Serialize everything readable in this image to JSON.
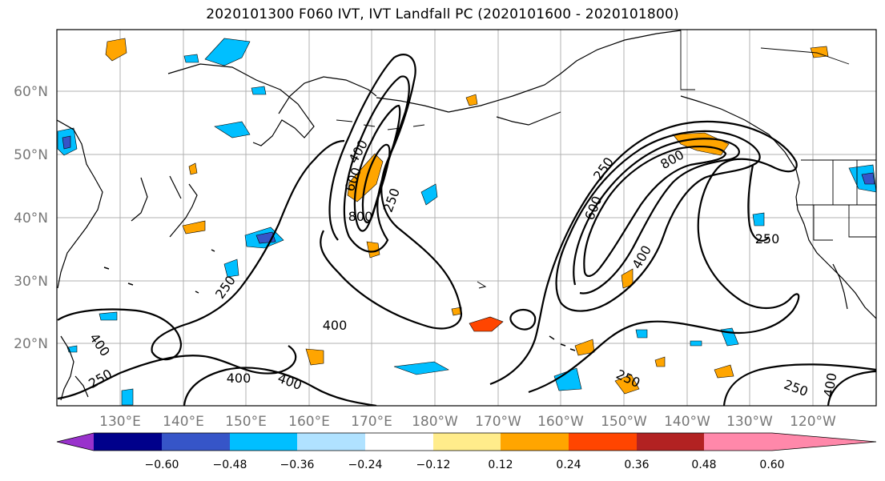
{
  "title": "2020101300 F060 IVT, IVT Landfall PC (2020101600 - 2020101800)",
  "lat_labels": [
    "60°N",
    "50°N",
    "40°N",
    "30°N",
    "20°N"
  ],
  "lon_labels": [
    "130°E",
    "140°E",
    "150°E",
    "160°E",
    "170°E",
    "180°W",
    "170°W",
    "160°W",
    "150°W",
    "140°W",
    "130°W",
    "120°W"
  ],
  "colorbar": {
    "colors": [
      "#9932cc",
      "#00008b",
      "#3655c8",
      "#00bfff",
      "#b0e2ff",
      "#ffffff",
      "#ffec8b",
      "#ffa500",
      "#ff4500",
      "#b22222",
      "#ff88aa"
    ],
    "tick_labels": [
      "−0.60",
      "−0.48",
      "−0.36",
      "−0.24",
      "−0.12",
      "0.12",
      "0.24",
      "0.36",
      "0.48",
      "0.60"
    ]
  },
  "contour_labels": [
    "400",
    "600",
    "800",
    "250",
    "250",
    "600",
    "800",
    "400",
    "250",
    "250",
    "400",
    "400",
    "400",
    "250",
    "400",
    "250",
    "250",
    "400"
  ]
}
